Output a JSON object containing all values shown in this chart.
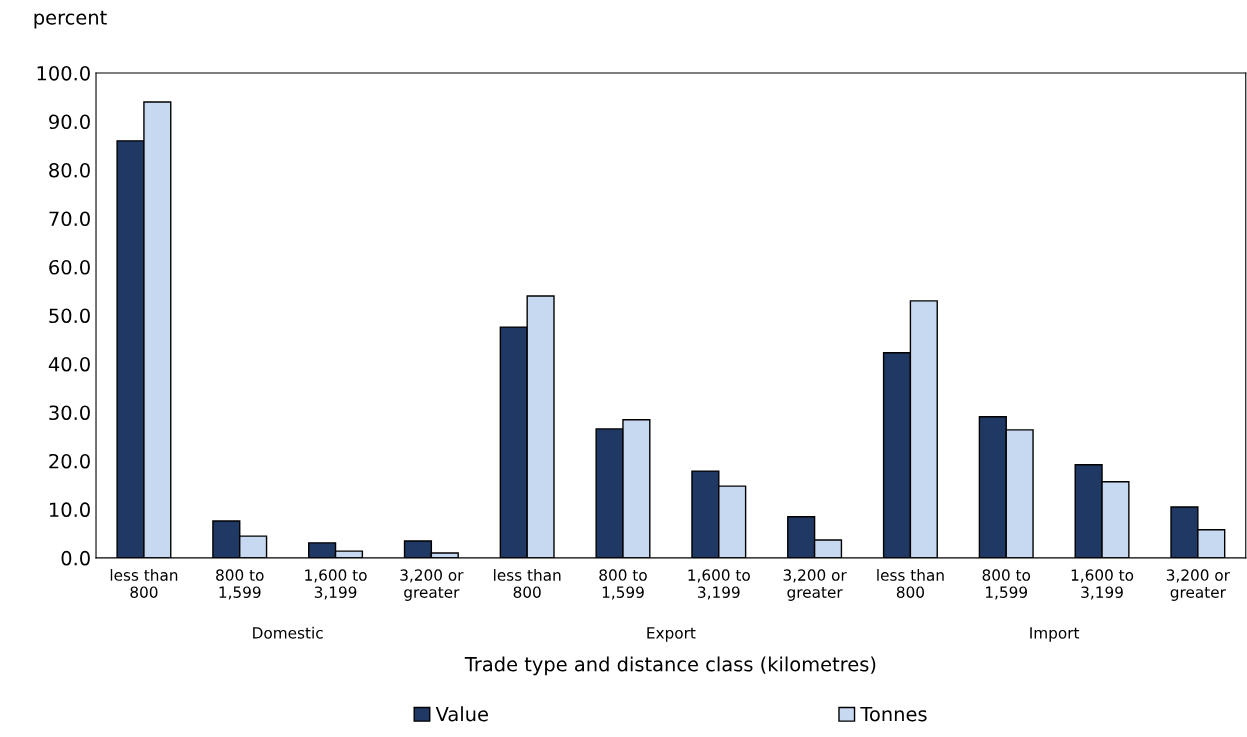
{
  "chart_data": {
    "type": "bar",
    "ylabel": "percent",
    "xlabel": "Trade type and distance class (kilometres)",
    "categories": [
      "less than\n800",
      "800 to\n1,599",
      "1,600 to\n3,199",
      "3,200 or\ngreater",
      "less than\n800",
      "800 to\n1,599",
      "1,600 to\n3,199",
      "3,200 or\ngreater",
      "less than\n800",
      "800 to\n1,599",
      "1,600 to\n3,199",
      "3,200 or\ngreater"
    ],
    "series": [
      {
        "name": "Value",
        "color": "#1f3864",
        "values": [
          86.0,
          7.6,
          3.1,
          3.5,
          47.6,
          26.6,
          17.9,
          8.5,
          42.3,
          29.1,
          19.2,
          10.5
        ]
      },
      {
        "name": "Tonnes",
        "color": "#c6d9f1",
        "values": [
          94.0,
          4.5,
          1.4,
          1.0,
          54.0,
          28.5,
          14.8,
          3.7,
          53.0,
          26.4,
          15.7,
          5.8
        ]
      }
    ],
    "annotations": [
      "Domestic",
      "Export",
      "Import"
    ],
    "ylim": [
      0,
      100
    ],
    "yticks": [
      {
        "value": 0,
        "label": "0.0"
      },
      {
        "value": 10,
        "label": "10.0"
      },
      {
        "value": 20,
        "label": "20.0"
      },
      {
        "value": 30,
        "label": "30.0"
      },
      {
        "value": 40,
        "label": "40.0"
      },
      {
        "value": 50,
        "label": "50.0"
      },
      {
        "value": 60,
        "label": "60.0"
      },
      {
        "value": 70,
        "label": "70.0"
      },
      {
        "value": 80,
        "label": "80.0"
      },
      {
        "value": 90,
        "label": "90.0"
      },
      {
        "value": 100,
        "label": "100.0"
      }
    ],
    "grid": false,
    "legend": "bottom"
  }
}
